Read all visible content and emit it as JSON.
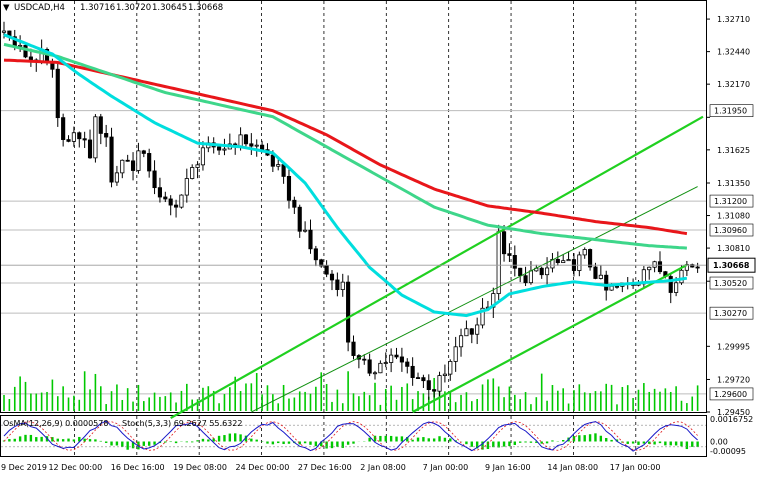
{
  "header": {
    "marker": "▼",
    "symbol": "USDCAD,H4",
    "open": "1.30716",
    "high": "1.30720",
    "low": "1.30645",
    "close": "1.30668"
  },
  "indicator_header": {
    "osma": "OsMA(12,26,9) 0.0000578",
    "stoch": "Stoch(5,3,3) 69.2627 55.6322"
  },
  "colors": {
    "candle": "#000000",
    "ema_fast": "#00dede",
    "ema_mid": "#3ed68a",
    "ema_slow": "#e8161a",
    "channel": "#20d020",
    "osma": "#00c800",
    "stoch_main": "#1818c8",
    "stoch_signal": "#e0181a",
    "level_line": "#bcbcbc",
    "grid": "#000000"
  },
  "chart_data": {
    "type": "candlestick",
    "symbol": "USDCAD",
    "timeframe": "H4",
    "ylim": [
      1.2945,
      1.3286
    ],
    "y_ticks": [
      "1.32710",
      "1.32440",
      "1.32170",
      "1.31895",
      "1.31625",
      "1.31350",
      "1.31080",
      "1.30810",
      "1.30535",
      "1.29995",
      "1.29720",
      "1.29450"
    ],
    "x_labels": [
      "9 Dec 2019",
      "12 Dec 00:00",
      "16 Dec 16:00",
      "19 Dec 08:00",
      "24 Dec 00:00",
      "27 Dec 16:00",
      "2 Jan 08:00",
      "7 Jan 00:00",
      "9 Jan 16:00",
      "14 Jan 08:00",
      "17 Jan 00:00"
    ],
    "levels": [
      {
        "value": 1.3195,
        "label": "1.31950"
      },
      {
        "value": 1.312,
        "label": "1.31200"
      },
      {
        "value": 1.3096,
        "label": "1.30960"
      },
      {
        "value": 1.3052,
        "label": "1.30520"
      },
      {
        "value": 1.3027,
        "label": "1.30270"
      },
      {
        "value": 1.296,
        "label": "1.29600"
      }
    ],
    "current_price": {
      "value": 1.30668,
      "label": "1.30668"
    },
    "close_path": [
      [
        0,
        1.326
      ],
      [
        3,
        1.3245
      ],
      [
        5,
        1.3238
      ],
      [
        7,
        1.324
      ],
      [
        9,
        1.3225
      ],
      [
        10,
        1.3185
      ],
      [
        12,
        1.3168
      ],
      [
        14,
        1.3175
      ],
      [
        16,
        1.316
      ],
      [
        17,
        1.3185
      ],
      [
        19,
        1.3175
      ],
      [
        20,
        1.3135
      ],
      [
        22,
        1.3155
      ],
      [
        24,
        1.315
      ],
      [
        25,
        1.316
      ],
      [
        27,
        1.3148
      ],
      [
        29,
        1.312
      ],
      [
        31,
        1.3115
      ],
      [
        33,
        1.3125
      ],
      [
        35,
        1.3145
      ],
      [
        37,
        1.3165
      ],
      [
        39,
        1.316
      ],
      [
        41,
        1.3165
      ],
      [
        43,
        1.317
      ],
      [
        45,
        1.317
      ],
      [
        47,
        1.3165
      ],
      [
        49,
        1.3158
      ],
      [
        51,
        1.3145
      ],
      [
        53,
        1.3125
      ],
      [
        55,
        1.31
      ],
      [
        57,
        1.308
      ],
      [
        59,
        1.3065
      ],
      [
        61,
        1.3055
      ],
      [
        63,
        1.305
      ],
      [
        64,
        1.3005
      ],
      [
        66,
        1.2985
      ],
      [
        68,
        1.298
      ],
      [
        70,
        1.2985
      ],
      [
        72,
        1.299
      ],
      [
        74,
        1.2985
      ],
      [
        76,
        1.2978
      ],
      [
        78,
        1.297
      ],
      [
        80,
        1.2965
      ],
      [
        82,
        1.2975
      ],
      [
        84,
        1.2995
      ],
      [
        85,
        1.301
      ],
      [
        87,
        1.301
      ],
      [
        89,
        1.303
      ],
      [
        91,
        1.3045
      ],
      [
        92,
        1.309
      ],
      [
        94,
        1.307
      ],
      [
        96,
        1.3055
      ],
      [
        98,
        1.306
      ],
      [
        100,
        1.3058
      ],
      [
        102,
        1.307
      ],
      [
        104,
        1.3065
      ],
      [
        106,
        1.3068
      ],
      [
        108,
        1.3075
      ],
      [
        110,
        1.306
      ],
      [
        112,
        1.3045
      ],
      [
        114,
        1.3048
      ],
      [
        116,
        1.305
      ],
      [
        118,
        1.3055
      ],
      [
        119,
        1.3068
      ],
      [
        121,
        1.3065
      ],
      [
        123,
        1.306
      ],
      [
        124,
        1.305
      ],
      [
        125,
        1.3058
      ],
      [
        126,
        1.3062
      ],
      [
        127,
        1.3067
      ]
    ],
    "ema_fast": [
      [
        0,
        1.3258
      ],
      [
        9,
        1.3242
      ],
      [
        14,
        1.3225
      ],
      [
        20,
        1.3207
      ],
      [
        28,
        1.3185
      ],
      [
        36,
        1.3168
      ],
      [
        44,
        1.3165
      ],
      [
        50,
        1.316
      ],
      [
        56,
        1.3135
      ],
      [
        62,
        1.3098
      ],
      [
        68,
        1.3065
      ],
      [
        74,
        1.3042
      ],
      [
        80,
        1.3028
      ],
      [
        86,
        1.3025
      ],
      [
        90,
        1.303
      ],
      [
        94,
        1.3043
      ],
      [
        100,
        1.3049
      ],
      [
        106,
        1.3053
      ],
      [
        112,
        1.305
      ],
      [
        118,
        1.3052
      ],
      [
        124,
        1.3054
      ],
      [
        127,
        1.3056
      ]
    ],
    "ema_mid": [
      [
        0,
        1.325
      ],
      [
        10,
        1.324
      ],
      [
        20,
        1.3225
      ],
      [
        30,
        1.321
      ],
      [
        40,
        1.32
      ],
      [
        50,
        1.319
      ],
      [
        60,
        1.3165
      ],
      [
        70,
        1.314
      ],
      [
        80,
        1.3115
      ],
      [
        90,
        1.31
      ],
      [
        100,
        1.3093
      ],
      [
        110,
        1.3088
      ],
      [
        120,
        1.3083
      ],
      [
        127,
        1.3081
      ]
    ],
    "ema_slow": [
      [
        0,
        1.3237
      ],
      [
        10,
        1.3235
      ],
      [
        20,
        1.3225
      ],
      [
        30,
        1.3215
      ],
      [
        40,
        1.3205
      ],
      [
        50,
        1.3195
      ],
      [
        60,
        1.3175
      ],
      [
        70,
        1.315
      ],
      [
        80,
        1.313
      ],
      [
        90,
        1.3116
      ],
      [
        100,
        1.311
      ],
      [
        110,
        1.3103
      ],
      [
        120,
        1.3098
      ],
      [
        127,
        1.3093
      ]
    ],
    "channel_lines": [
      {
        "name": "upper",
        "from": [
          31,
          1.294
        ],
        "to": [
          130,
          1.319
        ]
      },
      {
        "name": "lower",
        "from": [
          76,
          1.2945
        ],
        "to": [
          127,
          1.3067
        ]
      },
      {
        "name": "mid",
        "from": [
          46,
          1.2945
        ],
        "to": [
          129,
          1.3132
        ]
      }
    ],
    "x_bar_count": 130,
    "osma_ylim": [
      -0.00095,
      0.00167
    ],
    "osma_ticks": [
      "0.0016752",
      "0.00",
      "-0.00095"
    ],
    "stoch_levels": [
      20,
      80
    ]
  }
}
